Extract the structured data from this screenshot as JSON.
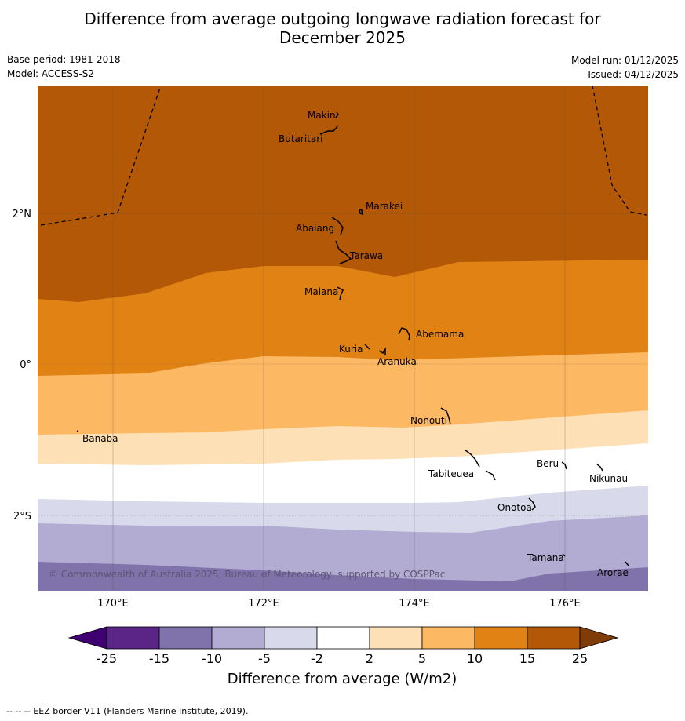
{
  "title_line1": "Difference from average outgoing longwave radiation forecast for",
  "title_line2": "December 2025",
  "base_period": "Base period: 1981-2018",
  "model": "Model: ACCESS-S2",
  "model_run": "Model run: 01/12/2025",
  "issued": "Issued: 04/12/2025",
  "copyright": "© Commonwealth of Australia 2025, Bureau of Meteorology, supported by COSPPac",
  "lat_labels": [
    "2°N",
    "0°",
    "2°S"
  ],
  "lon_labels": [
    "170°E",
    "172°E",
    "174°E",
    "176°E"
  ],
  "places": [
    "Makin",
    "Butaritari",
    "Marakei",
    "Abaiang",
    "Tarawa",
    "Maiana",
    "Abemama",
    "Kuria",
    "Aranuka",
    "Nonouti",
    "Banaba",
    "Tabiteuea",
    "Beru",
    "Nikunau",
    "Onotoa",
    "Tamana",
    "Arorae"
  ],
  "colorbar": {
    "label": "Difference from average (W/m2)",
    "ticks": [
      "-25",
      "-15",
      "-10",
      "-5",
      "-2",
      "2",
      "5",
      "10",
      "15",
      "25"
    ],
    "colors": [
      "#3f0071",
      "#5a2587",
      "#8073ac",
      "#b2abd2",
      "#d8daeb",
      "#ffffff",
      "#fee0b6",
      "#fdb863",
      "#e08214",
      "#b35806",
      "#7f3b08"
    ]
  },
  "footer": "--  --  -- EEZ border V11 (Flanders Marine Institute, 2019)."
}
